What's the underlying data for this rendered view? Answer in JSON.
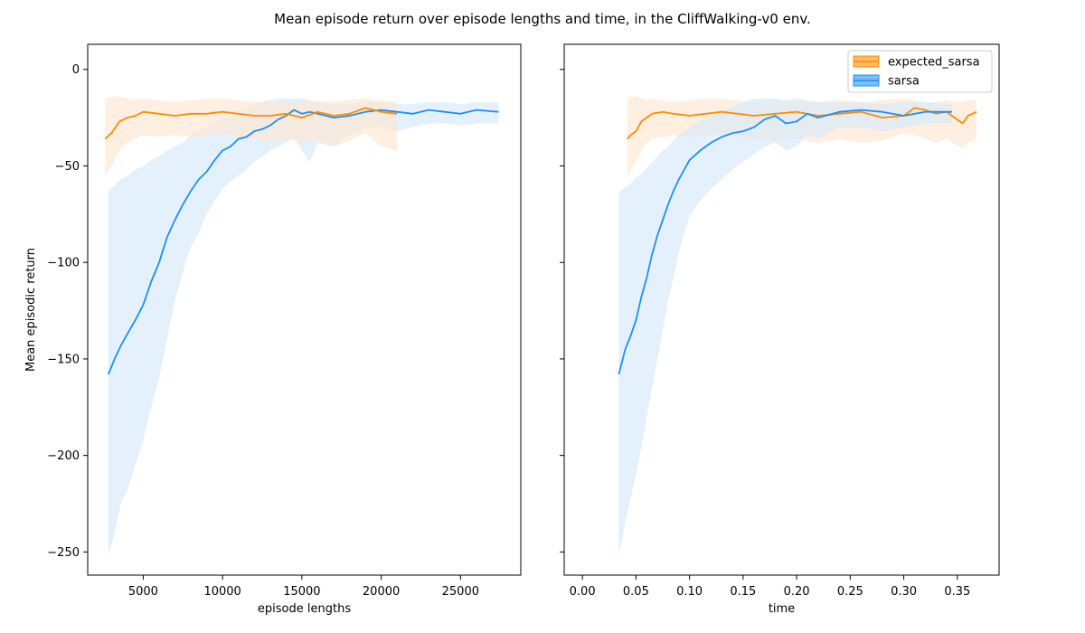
{
  "figure": {
    "suptitle": "Mean episode return over episode lengths and time, in the CliffWalking-v0 env."
  },
  "chart_data": [
    {
      "type": "line",
      "xlabel": "episode lengths",
      "ylabel": "Mean episodic return",
      "xlim": [
        1500,
        28800
      ],
      "ylim": [
        -262,
        13
      ],
      "xticks": [
        5000,
        10000,
        15000,
        20000,
        25000
      ],
      "xtick_labels": [
        "5000",
        "10000",
        "15000",
        "20000",
        "25000"
      ],
      "yticks": [
        0,
        -50,
        -100,
        -150,
        -200,
        -250
      ],
      "ytick_labels": [
        "0",
        "−50",
        "−100",
        "−150",
        "−200",
        "−250"
      ],
      "legend": false,
      "series": [
        {
          "name": "sarsa",
          "color": "#1f8ff0",
          "band_color": "#d6e9fb",
          "x": [
            2800,
            3200,
            3600,
            4000,
            4500,
            5000,
            5500,
            6000,
            6500,
            7000,
            7500,
            8000,
            8500,
            9000,
            9500,
            10000,
            10500,
            11000,
            11500,
            12000,
            12500,
            13000,
            13500,
            14000,
            14500,
            15000,
            15500,
            16000,
            17000,
            18000,
            19000,
            20000,
            21000,
            22000,
            23000,
            24000,
            25000,
            26000,
            27400
          ],
          "y": [
            -158,
            -150,
            -143,
            -137,
            -130,
            -122,
            -110,
            -100,
            -87,
            -78,
            -70,
            -63,
            -57,
            -53,
            -47,
            -42,
            -40,
            -36,
            -35,
            -32,
            -31,
            -29,
            -26,
            -24,
            -21,
            -23,
            -22,
            -23,
            -25,
            -24,
            -22,
            -21,
            -22,
            -23,
            -21,
            -22,
            -23,
            -21,
            -22
          ],
          "upper": [
            -63,
            -60,
            -57,
            -55,
            -52,
            -50,
            -47,
            -45,
            -42,
            -40,
            -38,
            -34,
            -32,
            -30,
            -28,
            -26,
            -25,
            -22,
            -20,
            -18,
            -17,
            -16,
            -15,
            -15,
            -15,
            -15,
            -16,
            -17,
            -18,
            -18,
            -17,
            -17,
            -18,
            -18,
            -17,
            -17,
            -18,
            -17,
            -17
          ],
          "lower": [
            -252,
            -240,
            -225,
            -218,
            -205,
            -192,
            -175,
            -160,
            -140,
            -120,
            -105,
            -92,
            -85,
            -75,
            -68,
            -62,
            -58,
            -55,
            -52,
            -48,
            -45,
            -42,
            -40,
            -38,
            -35,
            -42,
            -48,
            -38,
            -40,
            -34,
            -30,
            -30,
            -32,
            -30,
            -28,
            -28,
            -29,
            -28,
            -28
          ]
        },
        {
          "name": "expected_sarsa",
          "color": "#ff8c00",
          "band_color": "#fde7cf",
          "x": [
            2600,
            3000,
            3500,
            4000,
            4500,
            5000,
            6000,
            7000,
            8000,
            9000,
            10000,
            11000,
            12000,
            13000,
            14000,
            15000,
            16000,
            17000,
            18000,
            19000,
            20000,
            21000
          ],
          "y": [
            -36,
            -33,
            -27,
            -25,
            -24,
            -22,
            -23,
            -24,
            -23,
            -23,
            -22,
            -23,
            -24,
            -24,
            -23,
            -25,
            -22,
            -24,
            -23,
            -20,
            -22,
            -23
          ],
          "upper": [
            -15,
            -14,
            -14,
            -15,
            -16,
            -15,
            -16,
            -17,
            -16,
            -15,
            -15,
            -16,
            -17,
            -16,
            -17,
            -17,
            -16,
            -17,
            -16,
            -15,
            -16,
            -17
          ],
          "lower": [
            -55,
            -50,
            -42,
            -38,
            -36,
            -34,
            -35,
            -34,
            -35,
            -34,
            -33,
            -35,
            -36,
            -37,
            -36,
            -38,
            -36,
            -40,
            -37,
            -33,
            -40,
            -42
          ]
        }
      ]
    },
    {
      "type": "line",
      "xlabel": "time",
      "ylabel": "",
      "xlim": [
        -0.017,
        0.389
      ],
      "ylim": [
        -262,
        13
      ],
      "xticks": [
        0.0,
        0.05,
        0.1,
        0.15,
        0.2,
        0.25,
        0.3,
        0.35
      ],
      "xtick_labels": [
        "0.00",
        "0.05",
        "0.10",
        "0.15",
        "0.20",
        "0.25",
        "0.30",
        "0.35"
      ],
      "yticks": [
        0,
        -50,
        -100,
        -150,
        -200,
        -250
      ],
      "legend": true,
      "legend_position": "top-right",
      "series": [
        {
          "name": "expected_sarsa",
          "color": "#ff8c00",
          "band_color": "#fde7cf",
          "x": [
            0.042,
            0.045,
            0.05,
            0.055,
            0.06,
            0.065,
            0.075,
            0.085,
            0.1,
            0.115,
            0.13,
            0.145,
            0.16,
            0.18,
            0.2,
            0.22,
            0.24,
            0.26,
            0.28,
            0.3,
            0.31,
            0.32,
            0.33,
            0.34,
            0.355,
            0.36,
            0.368
          ],
          "y": [
            -36,
            -34,
            -32,
            -27,
            -25,
            -23,
            -22,
            -23,
            -24,
            -23,
            -22,
            -23,
            -24,
            -23,
            -22,
            -24,
            -23,
            -22,
            -25,
            -24,
            -20,
            -21,
            -23,
            -22,
            -28,
            -24,
            -22
          ],
          "upper": [
            -15,
            -14,
            -14,
            -15,
            -16,
            -15,
            -16,
            -17,
            -16,
            -15,
            -15,
            -16,
            -17,
            -16,
            -17,
            -17,
            -16,
            -17,
            -16,
            -15,
            -16,
            -17,
            -17,
            -16,
            -17,
            -16,
            -16
          ],
          "lower": [
            -55,
            -52,
            -48,
            -42,
            -38,
            -36,
            -35,
            -34,
            -35,
            -34,
            -33,
            -35,
            -36,
            -37,
            -36,
            -38,
            -36,
            -38,
            -37,
            -33,
            -34,
            -36,
            -38,
            -36,
            -41,
            -38,
            -36
          ]
        },
        {
          "name": "sarsa",
          "color": "#1f8ff0",
          "band_color": "#d6e9fb",
          "x": [
            0.034,
            0.04,
            0.045,
            0.05,
            0.055,
            0.06,
            0.065,
            0.07,
            0.075,
            0.08,
            0.085,
            0.09,
            0.095,
            0.1,
            0.11,
            0.12,
            0.13,
            0.14,
            0.15,
            0.16,
            0.17,
            0.18,
            0.19,
            0.2,
            0.21,
            0.22,
            0.24,
            0.26,
            0.28,
            0.3,
            0.32,
            0.345
          ],
          "y": [
            -158,
            -145,
            -138,
            -130,
            -118,
            -108,
            -96,
            -86,
            -78,
            -70,
            -63,
            -57,
            -52,
            -47,
            -42,
            -38,
            -35,
            -33,
            -32,
            -30,
            -26,
            -24,
            -28,
            -27,
            -23,
            -25,
            -22,
            -21,
            -22,
            -24,
            -22,
            -22
          ],
          "upper": [
            -64,
            -61,
            -59,
            -56,
            -54,
            -51,
            -48,
            -45,
            -42,
            -40,
            -37,
            -34,
            -32,
            -30,
            -27,
            -24,
            -22,
            -19,
            -17,
            -15,
            -15,
            -15,
            -16,
            -15,
            -16,
            -17,
            -17,
            -17,
            -18,
            -17,
            -17,
            -18
          ],
          "lower": [
            -252,
            -235,
            -222,
            -210,
            -196,
            -180,
            -165,
            -150,
            -135,
            -120,
            -108,
            -95,
            -85,
            -76,
            -68,
            -62,
            -57,
            -52,
            -48,
            -44,
            -40,
            -38,
            -42,
            -40,
            -34,
            -36,
            -30,
            -30,
            -32,
            -30,
            -28,
            -28
          ]
        }
      ]
    }
  ]
}
